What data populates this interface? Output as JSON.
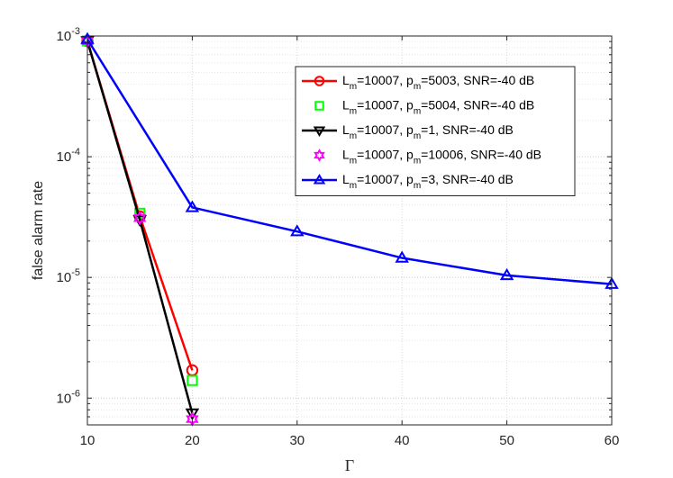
{
  "chart_data": {
    "type": "line",
    "title": "",
    "xlabel": "Γ",
    "ylabel": "false alarm rate",
    "xlim": [
      10,
      60
    ],
    "ylim": [
      6e-07,
      0.001
    ],
    "yscale": "log",
    "xticks": [
      10,
      20,
      30,
      40,
      50,
      60
    ],
    "xtick_labels": [
      "10",
      "20",
      "30",
      "40",
      "50",
      "60"
    ],
    "yticks": [
      1e-06,
      1e-05,
      0.0001,
      0.001
    ],
    "ytick_labels": [
      {
        "base": "10",
        "exp": "-6"
      },
      {
        "base": "10",
        "exp": "-5"
      },
      {
        "base": "10",
        "exp": "-4"
      },
      {
        "base": "10",
        "exp": "-3"
      }
    ],
    "grid": true,
    "legend_position": "top-right",
    "series": [
      {
        "name": "L_m=10007, p_m=5003, SNR=-40 dB",
        "legend": {
          "p1": "L",
          "s1": "m",
          "p2": "=10007, p",
          "s2": "m",
          "p3": "=5003, SNR=-40 dB"
        },
        "color": "#ff0000",
        "marker": "circle",
        "line": true,
        "x": [
          10,
          15,
          20
        ],
        "y": [
          0.00091,
          3.2e-05,
          1.7e-06
        ]
      },
      {
        "name": "L_m=10007, p_m=5004, SNR=-40 dB",
        "legend": {
          "p1": "L",
          "s1": "m",
          "p2": "=10007, p",
          "s2": "m",
          "p3": "=5004, SNR=-40 dB"
        },
        "color": "#00ff00",
        "marker": "square",
        "line": false,
        "x": [
          10,
          15,
          20
        ],
        "y": [
          0.00091,
          3.4e-05,
          1.4e-06
        ]
      },
      {
        "name": "L_m=10007, p_m=1, SNR=-40 dB",
        "legend": {
          "p1": "L",
          "s1": "m",
          "p2": "=10007, p",
          "s2": "m",
          "p3": "=1, SNR=-40 dB"
        },
        "color": "#000000",
        "marker": "triangle-down",
        "line": true,
        "x": [
          10,
          15,
          20
        ],
        "y": [
          0.00091,
          3e-05,
          7.5e-07
        ]
      },
      {
        "name": "L_m=10007, p_m=10006, SNR=-40 dB",
        "legend": {
          "p1": "L",
          "s1": "m",
          "p2": "=10007, p",
          "s2": "m",
          "p3": "=10006, SNR=-40 dB"
        },
        "color": "#ff00ff",
        "marker": "hexagram",
        "line": false,
        "x": [
          10,
          15,
          20
        ],
        "y": [
          0.00091,
          3.1e-05,
          6.7e-07
        ]
      },
      {
        "name": "L_m=10007, p_m=3, SNR=-40 dB",
        "legend": {
          "p1": "L",
          "s1": "m",
          "p2": "=10007, p",
          "s2": "m",
          "p3": "=3, SNR=-40 dB"
        },
        "color": "#0000ff",
        "marker": "triangle-up",
        "line": true,
        "x": [
          10,
          20,
          30,
          40,
          50,
          60
        ],
        "y": [
          0.00094,
          3.8e-05,
          2.4e-05,
          1.45e-05,
          1.04e-05,
          8.8e-06
        ]
      }
    ]
  }
}
